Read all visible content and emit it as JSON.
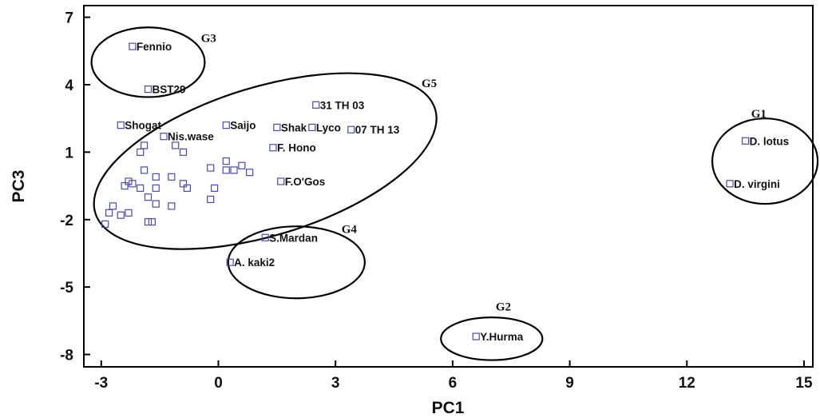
{
  "chart_data": {
    "type": "scatter",
    "title": "",
    "xlabel": "PC1",
    "ylabel": "PC3",
    "xlim": [
      -3.6,
      15.0
    ],
    "ylim": [
      -8.6,
      7.4
    ],
    "x_ticks": [
      -3,
      0,
      3,
      6,
      9,
      12,
      15
    ],
    "x_tick_labels": [
      "-3",
      "0",
      "3",
      "6",
      "9",
      "12",
      "15"
    ],
    "y_ticks": [
      7,
      4,
      1,
      -2,
      -5,
      -8
    ],
    "y_tick_labels": [
      "7",
      "4",
      "1",
      "-2",
      "-5",
      "-8"
    ],
    "grid": false,
    "marker_color": "#4a4aa8",
    "labeled_points": [
      {
        "label": "Fennio",
        "x": -2.2,
        "y": 5.7
      },
      {
        "label": "BST29",
        "x": -1.8,
        "y": 3.8
      },
      {
        "label": "Shogat",
        "x": -2.5,
        "y": 2.2
      },
      {
        "label": "Nis.wase",
        "x": -1.4,
        "y": 1.7
      },
      {
        "label": "Saijo",
        "x": 0.2,
        "y": 2.2
      },
      {
        "label": "31 TH 03",
        "x": 2.5,
        "y": 3.1
      },
      {
        "label": "Shak",
        "x": 1.5,
        "y": 2.1
      },
      {
        "label": "Lyco",
        "x": 2.4,
        "y": 2.1
      },
      {
        "label": "07 TH 13",
        "x": 3.4,
        "y": 2.0
      },
      {
        "label": "F. Hono",
        "x": 1.4,
        "y": 1.2
      },
      {
        "label": "F.O'Gos",
        "x": 1.6,
        "y": -0.3
      },
      {
        "label": "S.Mardan",
        "x": 1.2,
        "y": -2.8
      },
      {
        "label": "A. kaki2",
        "x": 0.3,
        "y": -3.9
      },
      {
        "label": "D. lotus",
        "x": 13.5,
        "y": 1.5
      },
      {
        "label": "D. virgini",
        "x": 13.1,
        "y": -0.4
      },
      {
        "label": "Y.Hurma",
        "x": 6.6,
        "y": -7.2
      }
    ],
    "unlabeled_points": [
      {
        "x": -1.9,
        "y": 1.3
      },
      {
        "x": -1.1,
        "y": 1.3
      },
      {
        "x": -2.0,
        "y": 1.0
      },
      {
        "x": -0.9,
        "y": 1.0
      },
      {
        "x": -1.9,
        "y": 0.2
      },
      {
        "x": -1.6,
        "y": -0.1
      },
      {
        "x": -2.3,
        "y": -0.3
      },
      {
        "x": -2.4,
        "y": -0.5
      },
      {
        "x": -2.0,
        "y": -0.6
      },
      {
        "x": -1.6,
        "y": -0.6
      },
      {
        "x": -2.2,
        "y": -0.4
      },
      {
        "x": -1.2,
        "y": -0.1
      },
      {
        "x": -0.9,
        "y": -0.4
      },
      {
        "x": -0.8,
        "y": -0.6
      },
      {
        "x": -1.8,
        "y": -1.0
      },
      {
        "x": -1.6,
        "y": -1.3
      },
      {
        "x": -1.2,
        "y": -1.4
      },
      {
        "x": -2.7,
        "y": -1.4
      },
      {
        "x": -2.8,
        "y": -1.7
      },
      {
        "x": -2.5,
        "y": -1.8
      },
      {
        "x": -2.3,
        "y": -1.7
      },
      {
        "x": -1.8,
        "y": -2.1
      },
      {
        "x": -1.7,
        "y": -2.1
      },
      {
        "x": -2.9,
        "y": -2.2
      },
      {
        "x": -0.2,
        "y": 0.3
      },
      {
        "x": 0.2,
        "y": 0.6
      },
      {
        "x": 0.4,
        "y": 0.2
      },
      {
        "x": 0.6,
        "y": 0.4
      },
      {
        "x": 0.8,
        "y": 0.1
      },
      {
        "x": 0.2,
        "y": 0.2
      },
      {
        "x": -0.1,
        "y": -0.6
      },
      {
        "x": -0.2,
        "y": -1.1
      }
    ],
    "groups": [
      {
        "label": "G1",
        "cx": 14.0,
        "cy": 0.6,
        "rx": 1.35,
        "ry": 1.9
      },
      {
        "label": "G2",
        "cx": 7.0,
        "cy": -7.3,
        "rx": 1.3,
        "ry": 0.95
      },
      {
        "label": "G3",
        "cx": -1.8,
        "cy": 5.0,
        "rx": 1.45,
        "ry": 1.55
      },
      {
        "label": "G4",
        "cx": 2.0,
        "cy": -3.9,
        "rx": 1.75,
        "ry": 1.6
      },
      {
        "label": "G5",
        "cx": 1.2,
        "cy": 0.6,
        "rx": 4.55,
        "ry": 3.3,
        "angle": -17
      }
    ]
  }
}
